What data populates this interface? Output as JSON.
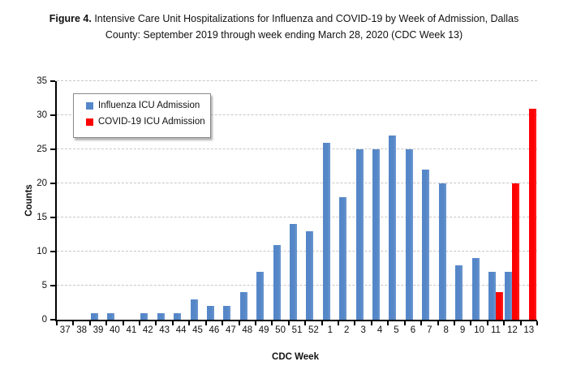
{
  "title": {
    "bold": "Figure 4.",
    "line1_rest": " Intensive Care Unit Hospitalizations for Influenza and COVID-19 by Week of Admission, Dallas",
    "line2": "County: September 2019 through week ending March 28, 2020 (CDC Week 13)"
  },
  "chart_data": {
    "type": "bar",
    "title": "Figure 4. Intensive Care Unit Hospitalizations for Influenza and COVID-19 by Week of Admission, Dallas County: September 2019 through week ending March 28, 2020 (CDC Week 13)",
    "xlabel": "CDC Week",
    "ylabel": "Counts",
    "ylim": [
      0,
      35
    ],
    "yticks": [
      0,
      5,
      10,
      15,
      20,
      25,
      30,
      35
    ],
    "grid": true,
    "gridline_color": "#c7c7c7",
    "axis_color": "#000000",
    "legend_position": "upper-left-inside",
    "categories": [
      "37",
      "38",
      "39",
      "40",
      "41",
      "42",
      "43",
      "44",
      "45",
      "46",
      "47",
      "48",
      "49",
      "50",
      "51",
      "52",
      "1",
      "2",
      "3",
      "4",
      "5",
      "6",
      "7",
      "8",
      "9",
      "10",
      "11",
      "12",
      "13"
    ],
    "series": [
      {
        "name": "Influenza ICU Admission",
        "color": "#5587c8",
        "values": [
          0,
          0,
          1,
          1,
          0,
          1,
          1,
          1,
          3,
          2,
          2,
          4,
          7,
          11,
          14,
          13,
          26,
          18,
          25,
          25,
          27,
          25,
          22,
          20,
          8,
          9,
          7,
          7,
          0
        ]
      },
      {
        "name": "COVID-19 ICU Admission",
        "color": "#ff0000",
        "values": [
          0,
          0,
          0,
          0,
          0,
          0,
          0,
          0,
          0,
          0,
          0,
          0,
          0,
          0,
          0,
          0,
          0,
          0,
          0,
          0,
          0,
          0,
          0,
          0,
          0,
          0,
          4,
          20,
          31
        ]
      }
    ]
  }
}
